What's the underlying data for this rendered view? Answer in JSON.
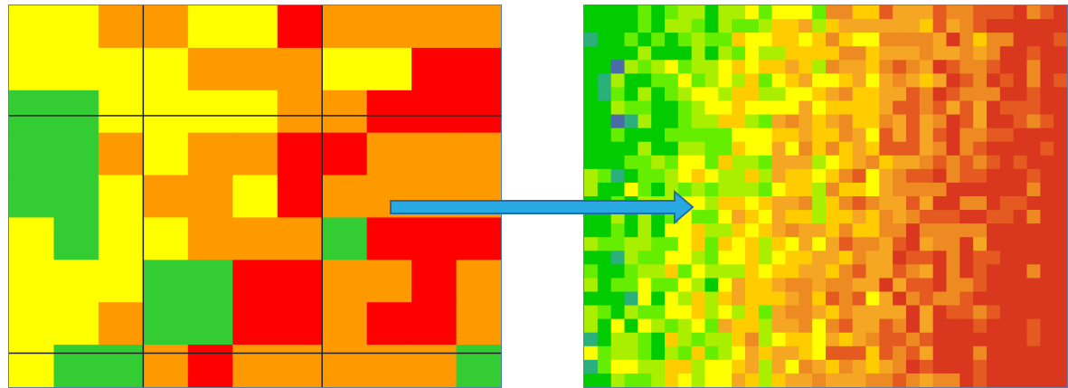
{
  "maps": [
    {
      "name": "coarse-resolution-map",
      "cols": 11,
      "rows": 9,
      "palette": [
        "#ffff00",
        "#ff9900",
        "#ff0000",
        "#33cc33"
      ],
      "grid_lines": {
        "color": "#222222",
        "vertical_cols": [
          3,
          7
        ],
        "horizontal_rows": [
          2.6,
          8.2
        ]
      },
      "cells": [
        "00110021111",
        "00001110022",
        "33000011222",
        "33101122111",
        "33011021111",
        "03001113222",
        "00033221121",
        "00133221221",
        "03312111113"
      ]
    },
    {
      "name": "fine-resolution-map",
      "cols": 36,
      "rows": 28,
      "palette": [
        "#00cc00",
        "#66ee00",
        "#aaee00",
        "#ffff00",
        "#ffcc00",
        "#f5a623",
        "#ee8a22",
        "#e45a20",
        "#d9381e",
        "#2ab07a",
        "#4a6aa8"
      ],
      "seed": 7
    }
  ],
  "arrow": {
    "name": "resolution-transition-arrow",
    "fill": "#29a9e1",
    "stroke": "#1f6ea8",
    "direction": "right"
  }
}
